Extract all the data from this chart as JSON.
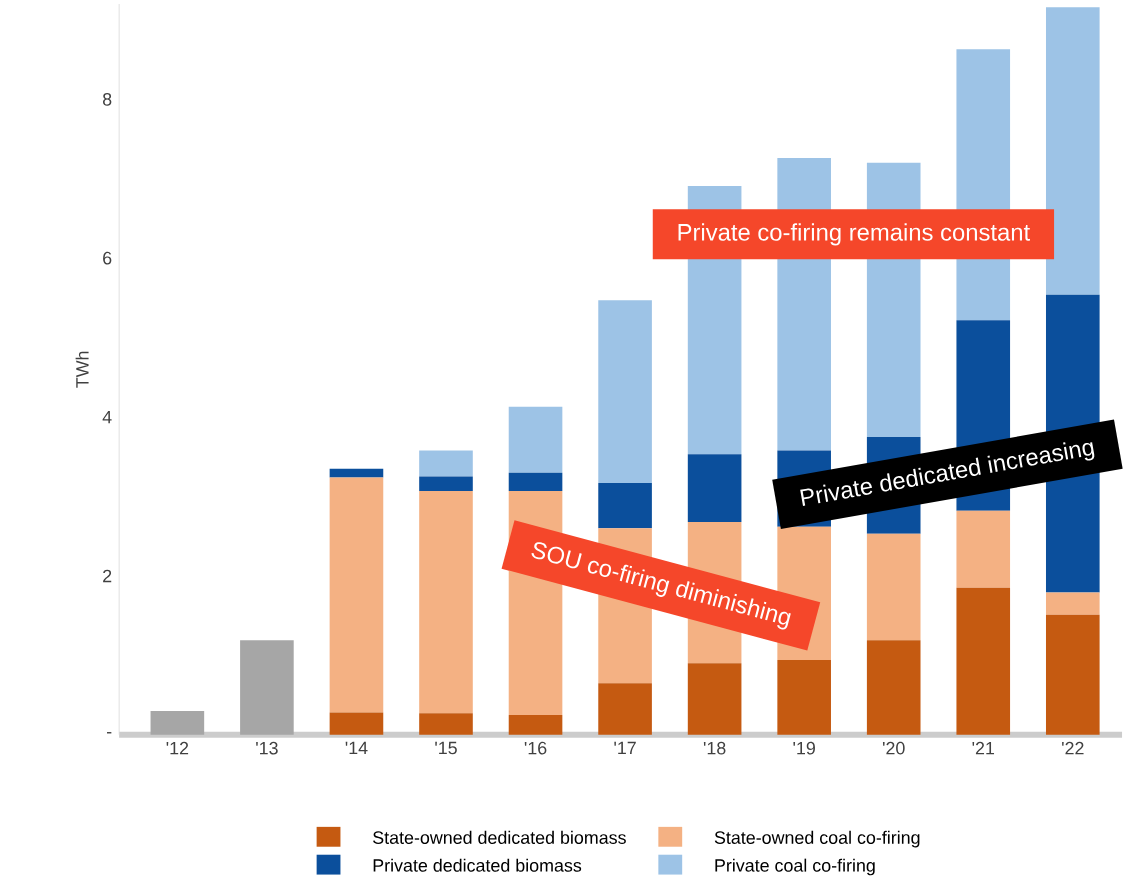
{
  "chart_data": {
    "type": "bar",
    "stacked": true,
    "ylabel": "TWh",
    "categories": [
      "'12",
      "'13",
      "'14",
      "'15",
      "'16",
      "'17",
      "'18",
      "'19",
      "'20",
      "'21",
      "'22"
    ],
    "series": [
      {
        "color": "#a6a6a6",
        "values": [
          0.3,
          1.19,
          null,
          null,
          null,
          null,
          null,
          null,
          null,
          null,
          null
        ]
      },
      {
        "name": "State-owned dedicated biomass",
        "color": "#c55a11",
        "values": [
          null,
          null,
          0.28,
          0.27,
          0.25,
          0.65,
          0.9,
          0.94,
          1.19,
          1.85,
          1.51
        ]
      },
      {
        "name": "State-owned coal co-firing",
        "color": "#f4b183",
        "values": [
          null,
          null,
          2.96,
          2.8,
          2.82,
          1.95,
          1.78,
          1.68,
          1.34,
          0.97,
          0.28
        ]
      },
      {
        "name": "Private dedicated biomass",
        "color": "#0b4f9c",
        "values": [
          null,
          null,
          0.11,
          0.18,
          0.23,
          0.57,
          0.85,
          0.96,
          1.22,
          2.4,
          3.75
        ]
      },
      {
        "name": "Private coal co-firing",
        "color": "#9dc3e6",
        "values": [
          null,
          null,
          null,
          0.33,
          0.83,
          2.3,
          3.38,
          3.68,
          3.45,
          3.41,
          3.62
        ]
      }
    ],
    "ylim": [
      0,
      9.2
    ],
    "yticks": [
      {
        "value": 0,
        "label": "-"
      },
      2,
      4,
      6,
      8
    ],
    "legend": "bottom",
    "grid": false,
    "annotations": [
      "Private co-firing remains constant",
      "Private dedicated increasing",
      "SOU co-firing diminishing"
    ]
  }
}
